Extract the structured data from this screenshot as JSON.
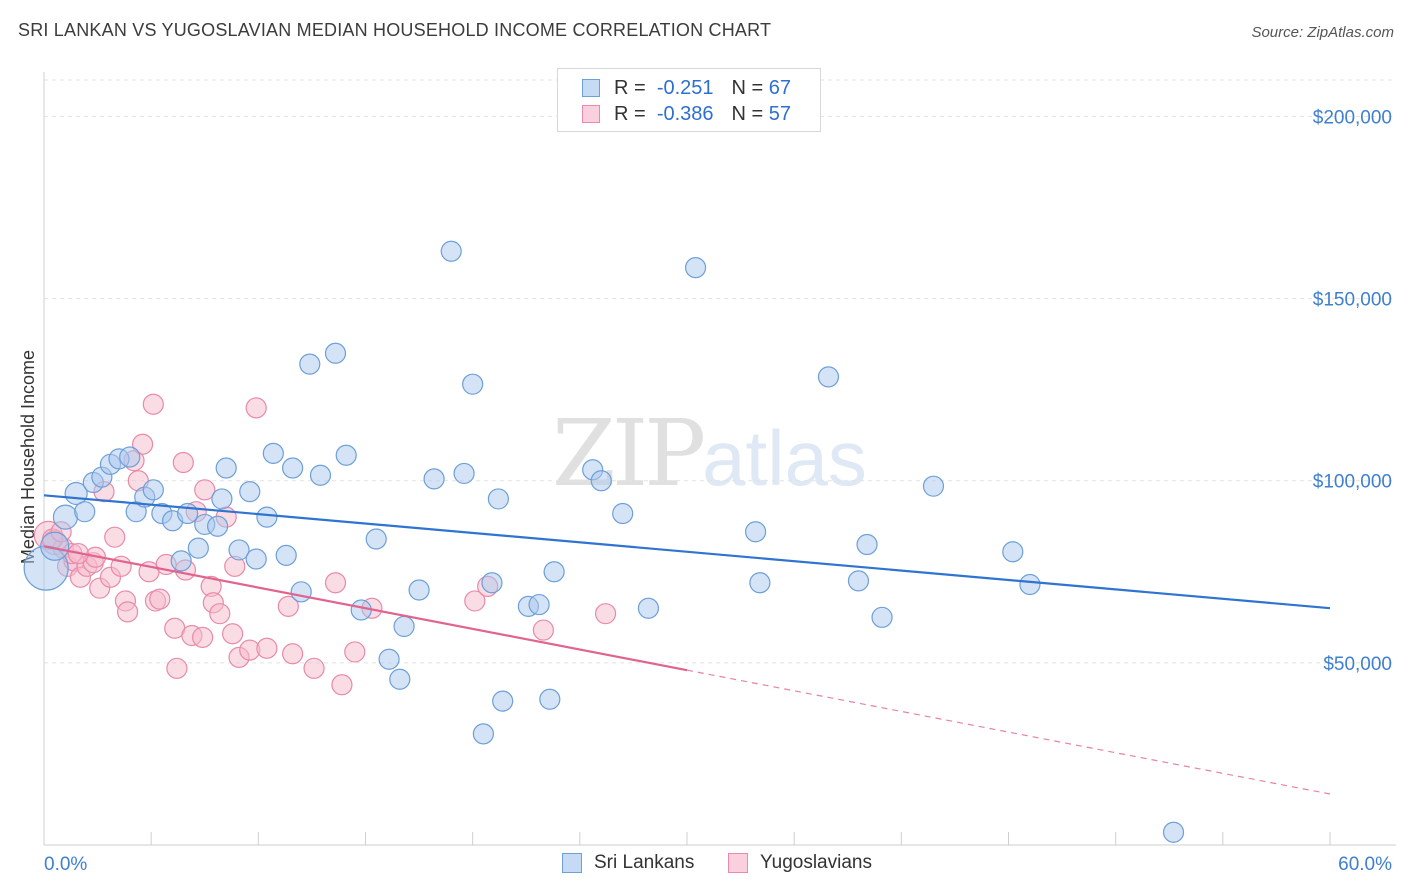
{
  "header": {
    "title": "SRI LANKAN VS YUGOSLAVIAN MEDIAN HOUSEHOLD INCOME CORRELATION CHART",
    "source": "Source: ZipAtlas.com"
  },
  "watermark": {
    "zip": "ZIP",
    "atlas": "atlas"
  },
  "legend": {
    "rows": [
      {
        "r_label": "R =",
        "r_value": "-0.251",
        "n_label": "N =",
        "n_value": "67"
      },
      {
        "r_label": "R =",
        "r_value": "-0.386",
        "n_label": "N =",
        "n_value": "57"
      }
    ]
  },
  "bottom_legend": {
    "series1": "Sri Lankans",
    "series2": "Yugoslavians"
  },
  "colors": {
    "blue_fill": "#a9c8ee",
    "blue_stroke": "#6d9fd8",
    "blue_line": "#2f74d0",
    "pink_fill": "#f6b9cc",
    "pink_stroke": "#e88aa8",
    "pink_line": "#e0648e",
    "grid": "#e2e2e2",
    "axis_text": "#3f7fd0"
  },
  "chart_data": {
    "type": "scatter",
    "title": "SRI LANKAN VS YUGOSLAVIAN MEDIAN HOUSEHOLD INCOME CORRELATION CHART",
    "xlabel": "",
    "ylabel": "Median Household Income",
    "xlim": [
      0,
      60
    ],
    "ylim": [
      0,
      210000
    ],
    "x_tick_labels": [
      "0.0%",
      "60.0%"
    ],
    "y_ticks": [
      50000,
      100000,
      150000,
      200000
    ],
    "y_tick_labels": [
      "$50,000",
      "$100,000",
      "$150,000",
      "$200,000"
    ],
    "grid": true,
    "legend_position": "top-center",
    "series": [
      {
        "name": "Sri Lankans",
        "r": -0.251,
        "n": 67,
        "trend": {
          "x": [
            0,
            60
          ],
          "y": [
            96000,
            65000
          ]
        },
        "points": [
          [
            0.1,
            76000,
            22
          ],
          [
            0.5,
            82000,
            14
          ],
          [
            1.0,
            90000,
            12
          ],
          [
            1.5,
            96500,
            11
          ],
          [
            1.9,
            91500,
            10
          ],
          [
            2.3,
            99500,
            10
          ],
          [
            2.7,
            101000,
            10
          ],
          [
            3.1,
            104500,
            10
          ],
          [
            3.5,
            106000,
            10
          ],
          [
            4.0,
            106500,
            10
          ],
          [
            4.3,
            91500,
            10
          ],
          [
            4.7,
            95500,
            10
          ],
          [
            5.1,
            97500,
            10
          ],
          [
            5.5,
            91000,
            10
          ],
          [
            6.0,
            89000,
            10
          ],
          [
            6.4,
            78000,
            10
          ],
          [
            6.7,
            91000,
            10
          ],
          [
            7.2,
            81500,
            10
          ],
          [
            7.5,
            88000,
            10
          ],
          [
            8.1,
            87500,
            10
          ],
          [
            8.3,
            95000,
            10
          ],
          [
            8.5,
            103500,
            10
          ],
          [
            9.1,
            81000,
            10
          ],
          [
            9.6,
            97000,
            10
          ],
          [
            9.9,
            78500,
            10
          ],
          [
            10.4,
            90000,
            10
          ],
          [
            10.7,
            107500,
            10
          ],
          [
            11.3,
            79500,
            10
          ],
          [
            11.6,
            103500,
            10
          ],
          [
            12.0,
            69500,
            10
          ],
          [
            12.4,
            132000,
            10
          ],
          [
            12.9,
            101500,
            10
          ],
          [
            13.6,
            135000,
            10
          ],
          [
            14.1,
            107000,
            10
          ],
          [
            14.8,
            64500,
            10
          ],
          [
            15.5,
            84000,
            10
          ],
          [
            16.1,
            51000,
            10
          ],
          [
            16.6,
            45500,
            10
          ],
          [
            16.8,
            60000,
            10
          ],
          [
            17.5,
            70000,
            10
          ],
          [
            18.2,
            100500,
            10
          ],
          [
            19.0,
            163000,
            10
          ],
          [
            19.6,
            102000,
            10
          ],
          [
            20.0,
            126500,
            10
          ],
          [
            20.5,
            30500,
            10
          ],
          [
            20.9,
            72000,
            10
          ],
          [
            21.2,
            95000,
            10
          ],
          [
            21.4,
            39500,
            10
          ],
          [
            22.6,
            65500,
            10
          ],
          [
            23.1,
            66000,
            10
          ],
          [
            23.6,
            40000,
            10
          ],
          [
            23.8,
            75000,
            10
          ],
          [
            25.6,
            103000,
            10
          ],
          [
            26.0,
            100000,
            10
          ],
          [
            27.0,
            91000,
            10
          ],
          [
            28.2,
            65000,
            10
          ],
          [
            30.4,
            158500,
            10
          ],
          [
            33.2,
            86000,
            10
          ],
          [
            33.4,
            72000,
            10
          ],
          [
            36.6,
            128500,
            10
          ],
          [
            38.0,
            72500,
            10
          ],
          [
            38.4,
            82500,
            10
          ],
          [
            39.1,
            62500,
            10
          ],
          [
            41.5,
            98500,
            10
          ],
          [
            45.2,
            80500,
            10
          ],
          [
            46.0,
            71500,
            10
          ],
          [
            52.7,
            3500,
            10
          ]
        ]
      },
      {
        "name": "Yugoslavians",
        "r": -0.386,
        "n": 57,
        "trend": {
          "x": [
            0,
            30
          ],
          "y": [
            82000,
            48000
          ],
          "dashed_x": [
            30,
            60
          ],
          "dashed_y": [
            48000,
            14000
          ]
        },
        "points": [
          [
            0.2,
            85000,
            14
          ],
          [
            0.5,
            83000,
            12
          ],
          [
            0.9,
            81500,
            10
          ],
          [
            1.1,
            76500,
            10
          ],
          [
            1.4,
            78000,
            10
          ],
          [
            1.7,
            73500,
            10
          ],
          [
            2.0,
            76500,
            10
          ],
          [
            2.3,
            77500,
            10
          ],
          [
            2.6,
            70500,
            10
          ],
          [
            2.8,
            97000,
            10
          ],
          [
            3.1,
            73500,
            10
          ],
          [
            3.3,
            84500,
            10
          ],
          [
            3.6,
            76500,
            10
          ],
          [
            3.8,
            67000,
            10
          ],
          [
            3.9,
            64000,
            10
          ],
          [
            4.2,
            105500,
            10
          ],
          [
            4.4,
            100000,
            10
          ],
          [
            4.6,
            110000,
            10
          ],
          [
            4.9,
            75000,
            10
          ],
          [
            5.1,
            121000,
            10
          ],
          [
            5.2,
            67000,
            10
          ],
          [
            5.4,
            67500,
            10
          ],
          [
            5.7,
            77000,
            10
          ],
          [
            6.1,
            59500,
            10
          ],
          [
            6.2,
            48500,
            10
          ],
          [
            6.5,
            105000,
            10
          ],
          [
            6.6,
            75500,
            10
          ],
          [
            6.9,
            57500,
            10
          ],
          [
            7.1,
            91500,
            10
          ],
          [
            7.4,
            57000,
            10
          ],
          [
            7.5,
            97500,
            10
          ],
          [
            7.8,
            71000,
            10
          ],
          [
            7.9,
            66500,
            10
          ],
          [
            8.2,
            63500,
            10
          ],
          [
            8.5,
            90000,
            10
          ],
          [
            8.8,
            58000,
            10
          ],
          [
            8.9,
            76500,
            10
          ],
          [
            9.1,
            51500,
            10
          ],
          [
            9.6,
            53500,
            10
          ],
          [
            9.9,
            120000,
            10
          ],
          [
            10.4,
            54000,
            10
          ],
          [
            11.4,
            65500,
            10
          ],
          [
            11.6,
            52500,
            10
          ],
          [
            12.6,
            48500,
            10
          ],
          [
            13.6,
            72000,
            10
          ],
          [
            13.9,
            44000,
            10
          ],
          [
            14.5,
            53000,
            10
          ],
          [
            15.3,
            65000,
            10
          ],
          [
            20.1,
            67000,
            10
          ],
          [
            20.7,
            71000,
            10
          ],
          [
            23.3,
            59000,
            10
          ],
          [
            26.2,
            63500,
            10
          ],
          [
            0.4,
            84000,
            10
          ],
          [
            1.3,
            80000,
            10
          ],
          [
            2.4,
            79000,
            10
          ],
          [
            0.8,
            86000,
            10
          ],
          [
            1.6,
            80000,
            10
          ]
        ]
      }
    ]
  }
}
